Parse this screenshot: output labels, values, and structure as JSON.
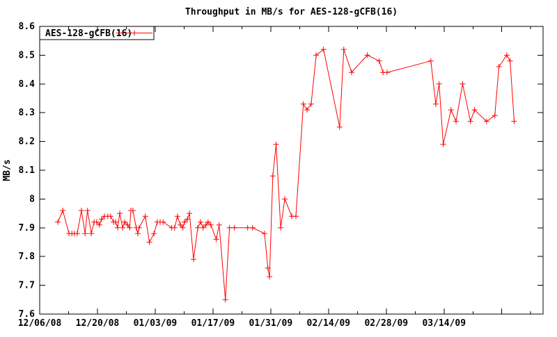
{
  "page": {
    "background": "#ffffff",
    "text_color": "#000000"
  },
  "chart_data": {
    "type": "line",
    "title": "Throughput in MB/s for AES-128-gCFB(16)",
    "ylabel": "MB/s",
    "xlabel": "",
    "grid": false,
    "legend": {
      "position": "top-left-inside",
      "border": true
    },
    "x_axis": {
      "unit": "days since 12/06/2008",
      "range": [
        0,
        122
      ],
      "minor_tick_interval_days": 7,
      "major_tick_interval_days": 14,
      "ticks": [
        {
          "day": 0,
          "major": true,
          "label": "12/06/08"
        },
        {
          "day": 7,
          "major": false,
          "label": ""
        },
        {
          "day": 14,
          "major": true,
          "label": "12/20/08"
        },
        {
          "day": 21,
          "major": false,
          "label": ""
        },
        {
          "day": 28,
          "major": true,
          "label": "01/03/09"
        },
        {
          "day": 35,
          "major": false,
          "label": ""
        },
        {
          "day": 42,
          "major": true,
          "label": "01/17/09"
        },
        {
          "day": 49,
          "major": false,
          "label": ""
        },
        {
          "day": 56,
          "major": true,
          "label": "01/31/09"
        },
        {
          "day": 63,
          "major": false,
          "label": ""
        },
        {
          "day": 70,
          "major": true,
          "label": "02/14/09"
        },
        {
          "day": 77,
          "major": false,
          "label": ""
        },
        {
          "day": 84,
          "major": true,
          "label": "02/28/09"
        },
        {
          "day": 91,
          "major": false,
          "label": ""
        },
        {
          "day": 98,
          "major": true,
          "label": "03/14/09"
        },
        {
          "day": 105,
          "major": false,
          "label": ""
        },
        {
          "day": 112,
          "major": true,
          "label": ""
        },
        {
          "day": 119,
          "major": false,
          "label": ""
        }
      ]
    },
    "y_axis": {
      "range": [
        7.6,
        8.6
      ],
      "tick_interval": 0.1,
      "ticks": [
        {
          "v": 8.6,
          "label": "8.6"
        },
        {
          "v": 8.5,
          "label": "8.5"
        },
        {
          "v": 8.4,
          "label": "8.4"
        },
        {
          "v": 8.3,
          "label": "8.3"
        },
        {
          "v": 8.2,
          "label": "8.2"
        },
        {
          "v": 8.1,
          "label": "8.1"
        },
        {
          "v": 8.0,
          "label": "8"
        },
        {
          "v": 7.9,
          "label": "7.9"
        },
        {
          "v": 7.8,
          "label": "7.8"
        },
        {
          "v": 7.7,
          "label": "7.7"
        },
        {
          "v": 7.6,
          "label": "7.6"
        }
      ]
    },
    "series": [
      {
        "name": "AES-128-gCFB(16)",
        "color": "#ff0000",
        "marker": "plus",
        "points": [
          [
            4.4,
            7.92
          ],
          [
            5.6,
            7.96
          ],
          [
            7.1,
            7.88
          ],
          [
            7.8,
            7.88
          ],
          [
            8.4,
            7.88
          ],
          [
            9.1,
            7.88
          ],
          [
            10.1,
            7.96
          ],
          [
            11.0,
            7.88
          ],
          [
            11.6,
            7.96
          ],
          [
            12.5,
            7.88
          ],
          [
            13.2,
            7.92
          ],
          [
            13.8,
            7.92
          ],
          [
            14.5,
            7.91
          ],
          [
            15.0,
            7.93
          ],
          [
            15.7,
            7.94
          ],
          [
            16.5,
            7.94
          ],
          [
            17.2,
            7.94
          ],
          [
            17.9,
            7.92
          ],
          [
            18.4,
            7.92
          ],
          [
            18.9,
            7.9
          ],
          [
            19.4,
            7.95
          ],
          [
            20.1,
            7.9
          ],
          [
            20.6,
            7.92
          ],
          [
            21.3,
            7.91
          ],
          [
            21.8,
            7.9
          ],
          [
            22.1,
            7.96
          ],
          [
            22.6,
            7.96
          ],
          [
            23.4,
            7.9
          ],
          [
            23.8,
            7.88
          ],
          [
            24.1,
            7.9
          ],
          [
            25.6,
            7.94
          ],
          [
            26.6,
            7.85
          ],
          [
            27.7,
            7.88
          ],
          [
            28.5,
            7.92
          ],
          [
            29.2,
            7.92
          ],
          [
            29.9,
            7.92
          ],
          [
            32.0,
            7.9
          ],
          [
            32.7,
            7.9
          ],
          [
            33.4,
            7.94
          ],
          [
            34.1,
            7.91
          ],
          [
            34.7,
            7.9
          ],
          [
            35.1,
            7.92
          ],
          [
            35.8,
            7.93
          ],
          [
            36.3,
            7.95
          ],
          [
            37.3,
            7.79
          ],
          [
            38.3,
            7.9
          ],
          [
            39.0,
            7.92
          ],
          [
            39.6,
            7.9
          ],
          [
            40.3,
            7.91
          ],
          [
            40.8,
            7.92
          ],
          [
            41.5,
            7.91
          ],
          [
            42.8,
            7.86
          ],
          [
            43.5,
            7.91
          ],
          [
            45.0,
            7.65
          ],
          [
            46.0,
            7.9
          ],
          [
            47.2,
            7.9
          ],
          [
            50.4,
            7.9
          ],
          [
            51.6,
            7.9
          ],
          [
            54.5,
            7.88
          ],
          [
            55.3,
            7.76
          ],
          [
            55.7,
            7.73
          ],
          [
            56.5,
            8.08
          ],
          [
            57.3,
            8.19
          ],
          [
            58.4,
            7.9
          ],
          [
            59.4,
            8.0
          ],
          [
            61.1,
            7.94
          ],
          [
            62.1,
            7.94
          ],
          [
            63.9,
            8.33
          ],
          [
            64.8,
            8.31
          ],
          [
            65.8,
            8.33
          ],
          [
            67.0,
            8.5
          ],
          [
            68.8,
            8.52
          ],
          [
            72.7,
            8.25
          ],
          [
            73.7,
            8.52
          ],
          [
            75.6,
            8.44
          ],
          [
            79.4,
            8.5
          ],
          [
            82.3,
            8.48
          ],
          [
            83.2,
            8.44
          ],
          [
            84.2,
            8.44
          ],
          [
            94.8,
            8.48
          ],
          [
            96.0,
            8.33
          ],
          [
            96.8,
            8.4
          ],
          [
            97.8,
            8.19
          ],
          [
            99.7,
            8.31
          ],
          [
            100.9,
            8.27
          ],
          [
            102.5,
            8.4
          ],
          [
            104.4,
            8.27
          ],
          [
            105.4,
            8.31
          ],
          [
            108.3,
            8.27
          ],
          [
            110.3,
            8.29
          ],
          [
            111.3,
            8.46
          ],
          [
            113.2,
            8.5
          ],
          [
            114.0,
            8.48
          ],
          [
            115.0,
            8.27
          ]
        ]
      }
    ]
  }
}
